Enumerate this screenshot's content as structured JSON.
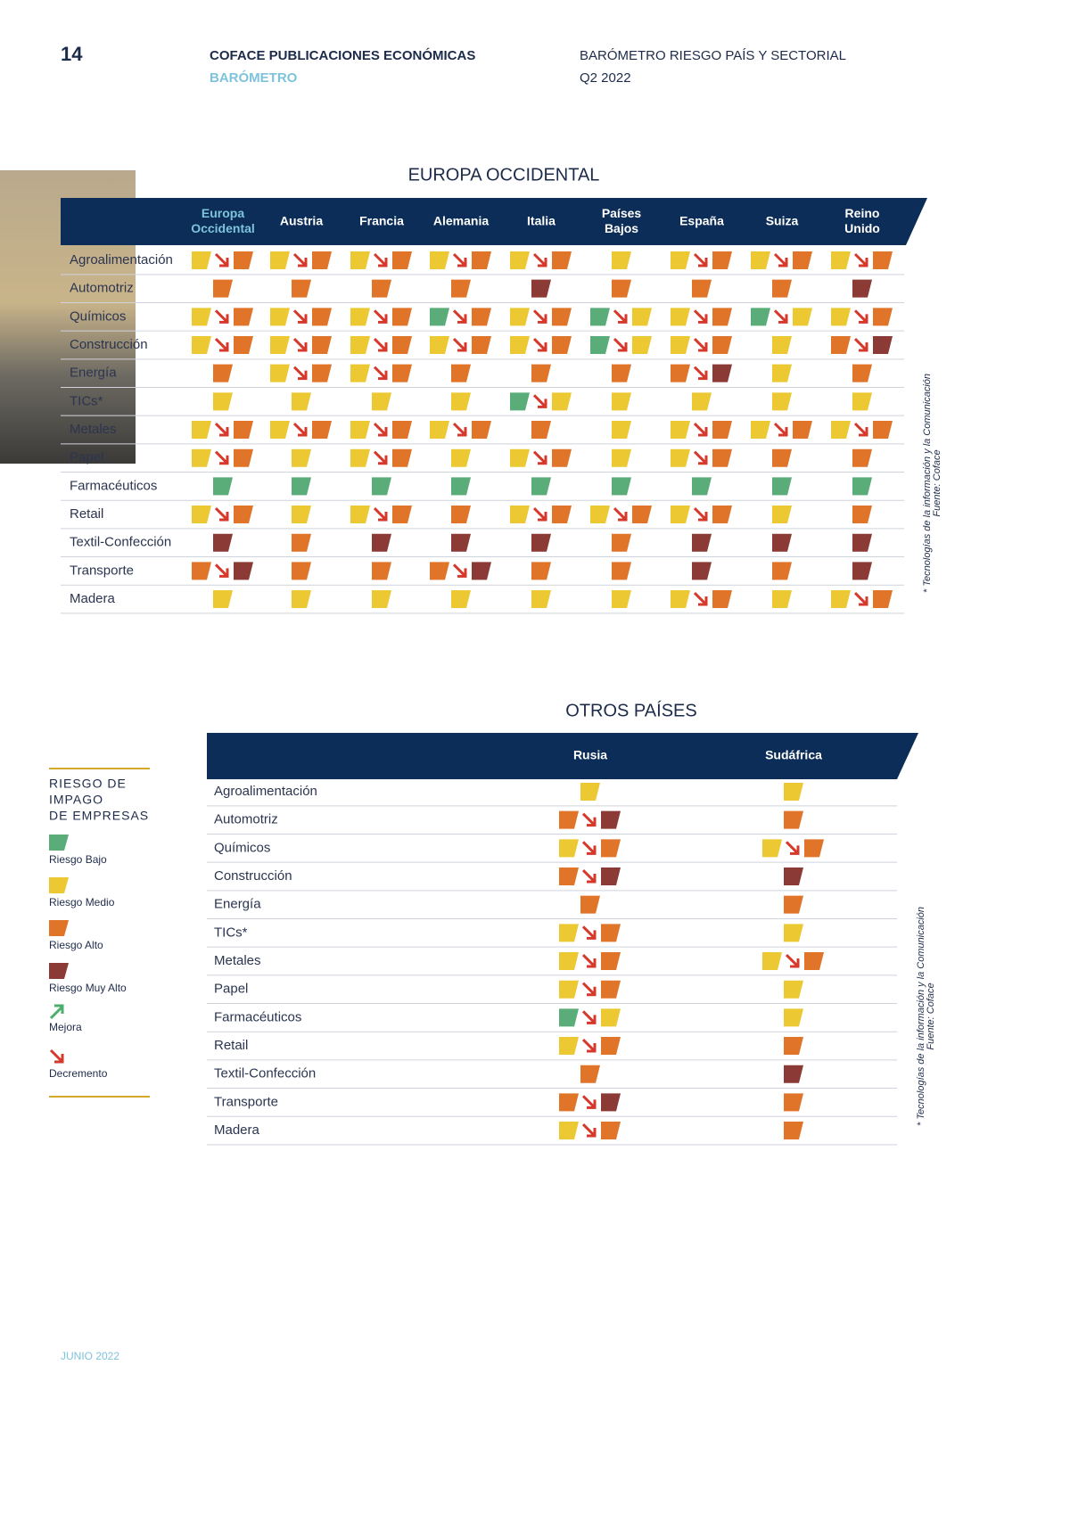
{
  "header": {
    "page": "14",
    "publisher": "COFACE PUBLICACIONES ECONÓMICAS",
    "section": "BARÓMETRO",
    "report": "BARÓMETRO RIESGO PAÍS Y SECTORIAL",
    "period": "Q2 2022"
  },
  "europe": {
    "title": "EUROPA OCCIDENTAL",
    "columns": [
      [
        "Europa",
        "Occidental"
      ],
      [
        "Austria"
      ],
      [
        "Francia"
      ],
      [
        "Alemania"
      ],
      [
        "Italia"
      ],
      [
        "Países",
        "Bajos"
      ],
      [
        "España"
      ],
      [
        "Suiza"
      ],
      [
        "Reino",
        "Unido"
      ]
    ],
    "rows": [
      {
        "sector": "Agroalimentación",
        "cells": [
          [
            2,
            3
          ],
          [
            2,
            3
          ],
          [
            2,
            3
          ],
          [
            2,
            3
          ],
          [
            2,
            3
          ],
          [
            2
          ],
          [
            2,
            3
          ],
          [
            2,
            3
          ],
          [
            2,
            3
          ]
        ]
      },
      {
        "sector": "Automotriz",
        "cells": [
          [
            3
          ],
          [
            3
          ],
          [
            3
          ],
          [
            3
          ],
          [
            4
          ],
          [
            3
          ],
          [
            3
          ],
          [
            3
          ],
          [
            4
          ]
        ]
      },
      {
        "sector": "Químicos",
        "cells": [
          [
            2,
            3
          ],
          [
            2,
            3
          ],
          [
            2,
            3
          ],
          [
            1,
            3
          ],
          [
            2,
            3
          ],
          [
            1,
            2
          ],
          [
            2,
            3
          ],
          [
            1,
            2
          ],
          [
            2,
            3
          ]
        ]
      },
      {
        "sector": "Construcción",
        "cells": [
          [
            2,
            3
          ],
          [
            2,
            3
          ],
          [
            2,
            3
          ],
          [
            2,
            3
          ],
          [
            2,
            3
          ],
          [
            1,
            2
          ],
          [
            2,
            3
          ],
          [
            2
          ],
          [
            3,
            4
          ]
        ]
      },
      {
        "sector": "Energía",
        "cells": [
          [
            3
          ],
          [
            2,
            3
          ],
          [
            2,
            3
          ],
          [
            3
          ],
          [
            3
          ],
          [
            3
          ],
          [
            3,
            4
          ],
          [
            2
          ],
          [
            3
          ]
        ]
      },
      {
        "sector": "TICs*",
        "cells": [
          [
            2
          ],
          [
            2
          ],
          [
            2
          ],
          [
            2
          ],
          [
            1,
            2
          ],
          [
            2
          ],
          [
            2
          ],
          [
            2
          ],
          [
            2
          ]
        ]
      },
      {
        "sector": "Metales",
        "cells": [
          [
            2,
            3
          ],
          [
            2,
            3
          ],
          [
            2,
            3
          ],
          [
            2,
            3
          ],
          [
            3
          ],
          [
            2
          ],
          [
            2,
            3
          ],
          [
            2,
            3
          ],
          [
            2,
            3
          ]
        ]
      },
      {
        "sector": "Papel",
        "cells": [
          [
            2,
            3
          ],
          [
            2
          ],
          [
            2,
            3
          ],
          [
            2
          ],
          [
            2,
            3
          ],
          [
            2
          ],
          [
            2,
            3
          ],
          [
            3
          ],
          [
            3
          ]
        ]
      },
      {
        "sector": "Farmacéuticos",
        "cells": [
          [
            1
          ],
          [
            1
          ],
          [
            1
          ],
          [
            1
          ],
          [
            1
          ],
          [
            1
          ],
          [
            1
          ],
          [
            1
          ],
          [
            1
          ]
        ]
      },
      {
        "sector": "Retail",
        "cells": [
          [
            2,
            3
          ],
          [
            2
          ],
          [
            2,
            3
          ],
          [
            3
          ],
          [
            2,
            3
          ],
          [
            2,
            3
          ],
          [
            2,
            3
          ],
          [
            2
          ],
          [
            3
          ]
        ]
      },
      {
        "sector": "Textil-Confección",
        "cells": [
          [
            4
          ],
          [
            3
          ],
          [
            4
          ],
          [
            4
          ],
          [
            4
          ],
          [
            3
          ],
          [
            4
          ],
          [
            4
          ],
          [
            4
          ]
        ]
      },
      {
        "sector": "Transporte",
        "cells": [
          [
            3,
            4
          ],
          [
            3
          ],
          [
            3
          ],
          [
            3,
            4
          ],
          [
            3
          ],
          [
            3
          ],
          [
            4
          ],
          [
            3
          ],
          [
            4
          ]
        ]
      },
      {
        "sector": "Madera",
        "cells": [
          [
            2
          ],
          [
            2
          ],
          [
            2
          ],
          [
            2
          ],
          [
            2
          ],
          [
            2
          ],
          [
            2,
            3
          ],
          [
            2
          ],
          [
            2,
            3
          ]
        ]
      }
    ],
    "notes": [
      "* Tecnologías de la información y la Comunicación",
      "Fuente: Coface"
    ]
  },
  "others": {
    "title": "OTROS PAÍSES",
    "columns": [
      [
        "Rusia"
      ],
      [
        "Sudáfrica"
      ]
    ],
    "rows": [
      {
        "sector": "Agroalimentación",
        "cells": [
          [
            2
          ],
          [
            2
          ]
        ]
      },
      {
        "sector": "Automotriz",
        "cells": [
          [
            3,
            4
          ],
          [
            3
          ]
        ]
      },
      {
        "sector": "Químicos",
        "cells": [
          [
            2,
            3
          ],
          [
            2,
            3
          ]
        ]
      },
      {
        "sector": "Construcción",
        "cells": [
          [
            3,
            4
          ],
          [
            4
          ]
        ]
      },
      {
        "sector": "Energía",
        "cells": [
          [
            3
          ],
          [
            3
          ]
        ]
      },
      {
        "sector": "TICs*",
        "cells": [
          [
            2,
            3
          ],
          [
            2
          ]
        ]
      },
      {
        "sector": "Metales",
        "cells": [
          [
            2,
            3
          ],
          [
            2,
            3
          ]
        ]
      },
      {
        "sector": "Papel",
        "cells": [
          [
            2,
            3
          ],
          [
            2
          ]
        ]
      },
      {
        "sector": "Farmacéuticos",
        "cells": [
          [
            1,
            2
          ],
          [
            2
          ]
        ]
      },
      {
        "sector": "Retail",
        "cells": [
          [
            2,
            3
          ],
          [
            3
          ]
        ]
      },
      {
        "sector": "Textil-Confección",
        "cells": [
          [
            3
          ],
          [
            4
          ]
        ]
      },
      {
        "sector": "Transporte",
        "cells": [
          [
            3,
            4
          ],
          [
            3
          ]
        ]
      },
      {
        "sector": "Madera",
        "cells": [
          [
            2,
            3
          ],
          [
            3
          ]
        ]
      }
    ],
    "notes": [
      "* Tecnologías de la información y la Comunicación",
      "Fuente: Coface"
    ]
  },
  "legend": {
    "title": [
      "RIESGO DE",
      "IMPAGO",
      "DE EMPRESAS"
    ],
    "levels": [
      {
        "level": 1,
        "label": "Riesgo Bajo",
        "color": "#5aad78"
      },
      {
        "level": 2,
        "label": "Riesgo Medio",
        "color": "#ecc932"
      },
      {
        "level": 3,
        "label": "Riesgo Alto",
        "color": "#e07428"
      },
      {
        "level": 4,
        "label": "Riesgo Muy Alto",
        "color": "#8b3a36"
      }
    ],
    "improvement": {
      "label": "Mejora",
      "color": "#4bae6b"
    },
    "decline": {
      "label": "Decremento",
      "color": "#d6382b"
    }
  },
  "footer": "JUNIO 2022"
}
